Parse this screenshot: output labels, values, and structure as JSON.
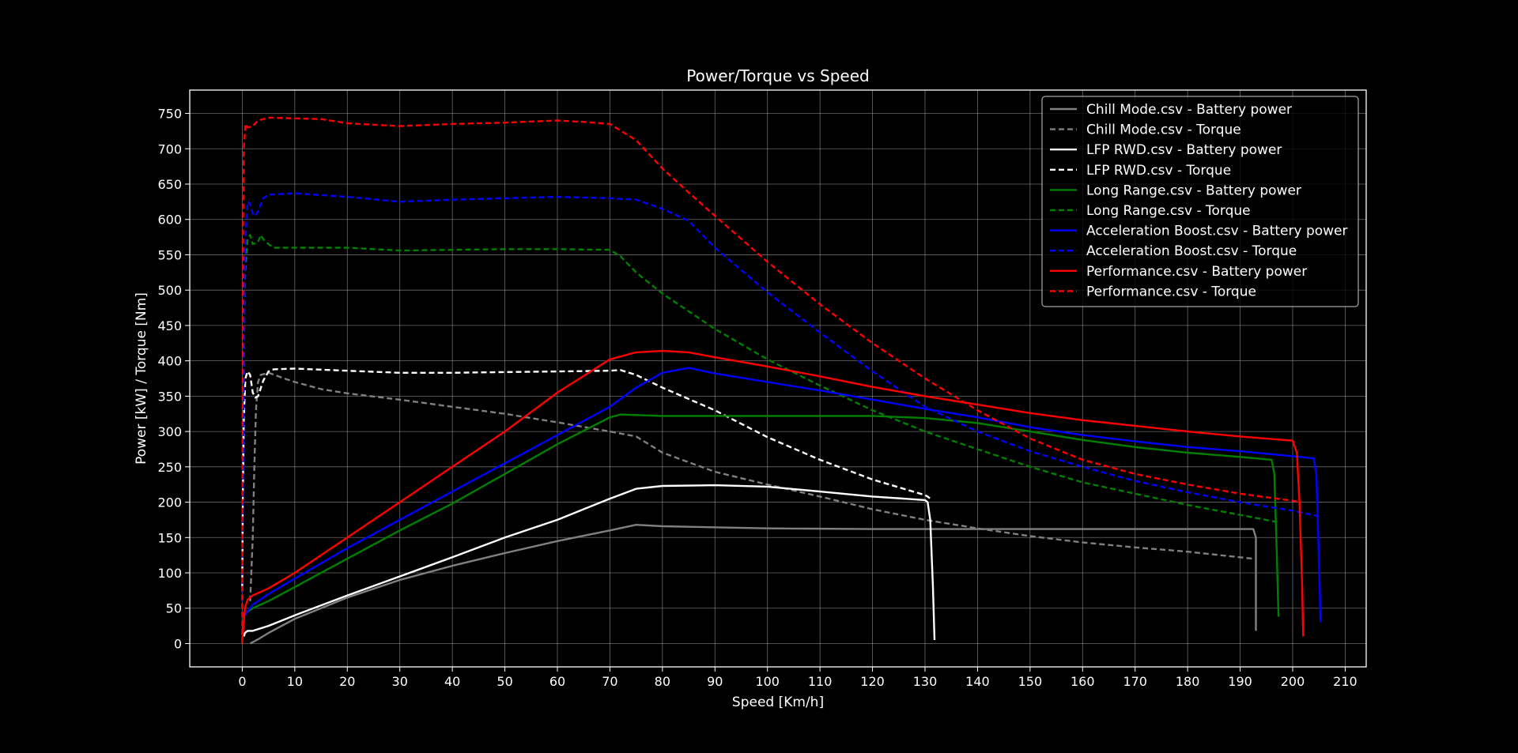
{
  "chart_data": {
    "type": "line",
    "title": "Power/Torque vs Speed",
    "xlabel": "Speed [Km/h]",
    "ylabel": "Power [kW] / Torque [Nm]",
    "xlim": [
      -10,
      214
    ],
    "ylim": [
      -33,
      783
    ],
    "xticks": [
      0,
      10,
      20,
      30,
      40,
      50,
      60,
      70,
      80,
      90,
      100,
      110,
      120,
      130,
      140,
      150,
      160,
      170,
      180,
      190,
      200,
      210
    ],
    "yticks": [
      0,
      50,
      100,
      150,
      200,
      250,
      300,
      350,
      400,
      450,
      500,
      550,
      600,
      650,
      700,
      750
    ],
    "xtick_labels": [
      "0",
      "10",
      "20",
      "30",
      "40",
      "50",
      "60",
      "70",
      "80",
      "90",
      "100",
      "110",
      "120",
      "130",
      "140",
      "150",
      "160",
      "170",
      "180",
      "190",
      "200",
      "210"
    ],
    "ytick_labels": [
      "0",
      "50",
      "100",
      "150",
      "200",
      "250",
      "300",
      "350",
      "400",
      "450",
      "500",
      "550",
      "600",
      "650",
      "700",
      "750"
    ],
    "grid": true,
    "legend_position": "top-right",
    "series": [
      {
        "name": "Chill Mode.csv - Battery power",
        "color": "#808080",
        "dash": "solid",
        "x": [
          1.5,
          2,
          3,
          5,
          10,
          20,
          30,
          40,
          50,
          60,
          70,
          75,
          80,
          100,
          120,
          150,
          170,
          190,
          192.5,
          193,
          193,
          193
        ],
        "y": [
          0,
          2,
          6,
          15,
          35,
          65,
          90,
          110,
          128,
          145,
          160,
          168,
          166,
          163,
          162,
          162,
          162,
          162,
          162,
          150,
          60,
          18
        ]
      },
      {
        "name": "Chill Mode.csv - Torque",
        "color": "#808080",
        "dash": "dashed",
        "x": [
          1.5,
          2,
          2.3,
          2.6,
          3,
          3.5,
          5,
          8,
          10,
          15,
          20,
          30,
          40,
          50,
          60,
          70,
          75,
          80,
          90,
          100,
          110,
          120,
          130,
          140,
          150,
          160,
          170,
          180,
          190,
          192.5
        ],
        "y": [
          60,
          150,
          250,
          330,
          370,
          380,
          383,
          375,
          370,
          360,
          354,
          345,
          335,
          325,
          313,
          300,
          293,
          270,
          243,
          225,
          208,
          190,
          175,
          163,
          152,
          143,
          136,
          130,
          122,
          120
        ]
      },
      {
        "name": "LFP RWD.csv - Battery power",
        "color": "#ffffff",
        "dash": "solid",
        "x": [
          0.3,
          0.5,
          1,
          2,
          5,
          10,
          20,
          30,
          40,
          50,
          60,
          70,
          75,
          80,
          90,
          100,
          110,
          120,
          130,
          130.5,
          131,
          131.5,
          131.8
        ],
        "y": [
          10,
          15,
          18,
          18,
          25,
          40,
          68,
          95,
          122,
          150,
          175,
          205,
          219,
          223,
          224,
          222,
          215,
          208,
          203,
          200,
          175,
          80,
          5
        ]
      },
      {
        "name": "LFP RWD.csv - Torque",
        "color": "#ffffff",
        "dash": "dashed",
        "x": [
          0,
          0.1,
          0.3,
          0.6,
          1,
          1.5,
          2,
          2.5,
          3,
          4,
          5,
          6,
          10,
          20,
          30,
          40,
          50,
          60,
          70,
          72,
          75,
          80,
          90,
          100,
          110,
          120,
          130,
          130.5,
          131
        ],
        "y": [
          80,
          200,
          320,
          375,
          385,
          380,
          355,
          348,
          350,
          372,
          385,
          388,
          389,
          386,
          383,
          383,
          384,
          385,
          386,
          387,
          380,
          362,
          330,
          292,
          260,
          232,
          210,
          208,
          205
        ]
      },
      {
        "name": "Long Range.csv - Battery power",
        "color": "#008000",
        "dash": "solid",
        "x": [
          0.5,
          1,
          2,
          5,
          10,
          20,
          30,
          40,
          50,
          60,
          70,
          72,
          80,
          90,
          100,
          110,
          120,
          130,
          140,
          150,
          160,
          170,
          180,
          190,
          196,
          196.5,
          197,
          197.3
        ],
        "y": [
          40,
          45,
          50,
          60,
          80,
          120,
          160,
          198,
          240,
          282,
          320,
          324,
          322,
          322,
          322,
          322,
          322,
          319,
          312,
          300,
          288,
          278,
          270,
          264,
          260,
          240,
          120,
          38
        ]
      },
      {
        "name": "Long Range.csv - Torque",
        "color": "#008000",
        "dash": "dashed",
        "x": [
          0,
          0.2,
          0.5,
          1,
          1.5,
          2,
          3,
          3.5,
          4,
          5,
          6,
          10,
          20,
          30,
          40,
          50,
          60,
          70,
          72,
          75,
          80,
          90,
          100,
          110,
          120,
          130,
          140,
          150,
          160,
          170,
          180,
          190,
          197
        ],
        "y": [
          60,
          300,
          520,
          572,
          578,
          565,
          568,
          578,
          572,
          565,
          560,
          560,
          560,
          556,
          557,
          558,
          558,
          557,
          548,
          525,
          495,
          445,
          402,
          365,
          330,
          300,
          275,
          250,
          228,
          212,
          196,
          182,
          172
        ]
      },
      {
        "name": "Acceleration Boost.csv - Battery power",
        "color": "#0000ff",
        "dash": "solid",
        "x": [
          0.5,
          1,
          2,
          5,
          10,
          20,
          30,
          40,
          50,
          60,
          70,
          75,
          80,
          85,
          90,
          100,
          110,
          120,
          130,
          140,
          150,
          160,
          170,
          180,
          190,
          200,
          204,
          204.5,
          205,
          205.3
        ],
        "y": [
          40,
          45,
          55,
          70,
          92,
          135,
          175,
          215,
          255,
          295,
          335,
          362,
          383,
          390,
          382,
          370,
          358,
          345,
          332,
          320,
          306,
          295,
          286,
          278,
          272,
          265,
          262,
          240,
          120,
          30
        ]
      },
      {
        "name": "Acceleration Boost.csv - Torque",
        "color": "#0000ff",
        "dash": "dashed",
        "x": [
          0,
          0.2,
          0.5,
          1,
          1.5,
          2,
          2.5,
          3,
          4,
          5,
          10,
          20,
          30,
          40,
          50,
          60,
          70,
          75,
          80,
          85,
          90,
          100,
          110,
          120,
          130,
          140,
          150,
          160,
          170,
          180,
          190,
          200,
          205
        ],
        "y": [
          60,
          300,
          560,
          625,
          622,
          608,
          605,
          612,
          630,
          635,
          637,
          632,
          625,
          628,
          630,
          632,
          630,
          628,
          615,
          598,
          560,
          497,
          440,
          385,
          335,
          300,
          272,
          250,
          230,
          214,
          200,
          188,
          180
        ]
      },
      {
        "name": "Performance.csv - Battery power",
        "color": "#ff0000",
        "dash": "solid",
        "x": [
          0,
          0.5,
          1,
          2,
          5,
          10,
          20,
          30,
          40,
          50,
          60,
          70,
          75,
          80,
          85,
          90,
          100,
          110,
          120,
          130,
          140,
          150,
          160,
          170,
          180,
          190,
          200,
          200.8,
          201.3,
          201.8,
          202
        ],
        "y": [
          5,
          50,
          62,
          68,
          78,
          100,
          150,
          200,
          250,
          300,
          355,
          402,
          412,
          414,
          412,
          405,
          392,
          378,
          363,
          350,
          338,
          326,
          316,
          308,
          300,
          293,
          287,
          270,
          200,
          80,
          10
        ]
      },
      {
        "name": "Performance.csv - Torque",
        "color": "#ff0000",
        "dash": "dashed",
        "x": [
          0,
          0.05,
          0.15,
          0.3,
          0.6,
          1,
          2,
          3,
          5,
          10,
          15,
          20,
          30,
          40,
          50,
          60,
          65,
          70,
          75,
          80,
          85,
          90,
          100,
          110,
          120,
          130,
          140,
          150,
          160,
          170,
          180,
          190,
          200,
          201.5
        ],
        "y": [
          0,
          300,
          600,
          700,
          735,
          730,
          732,
          740,
          744,
          743,
          742,
          736,
          732,
          735,
          737,
          740,
          738,
          735,
          712,
          672,
          638,
          605,
          540,
          480,
          425,
          375,
          330,
          290,
          260,
          240,
          225,
          212,
          202,
          200
        ]
      }
    ]
  }
}
